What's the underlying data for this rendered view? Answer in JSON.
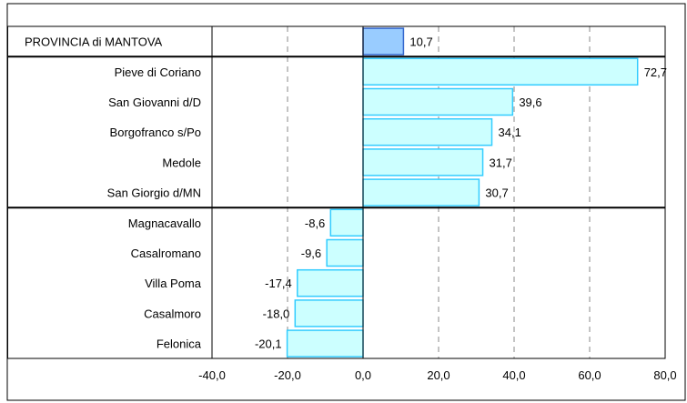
{
  "chart_data": {
    "type": "bar",
    "orientation": "horizontal",
    "title": "",
    "xlabel": "",
    "ylabel": "",
    "xlim": [
      -40,
      80
    ],
    "x_ticks": [
      -40,
      -20,
      0,
      20,
      40,
      60,
      80
    ],
    "x_tick_labels": [
      "-40,0",
      "-20,0",
      "0,0",
      "20,0",
      "40,0",
      "60,0",
      "80,0"
    ],
    "grid": "vertical dashed",
    "legend": "none",
    "groups": [
      {
        "categories": [
          "PROVINCIA di MANTOVA"
        ],
        "values": [
          10.7
        ],
        "value_labels": [
          "10,7"
        ],
        "color": "#99ccff"
      },
      {
        "categories": [
          "Pieve di Coriano",
          "San Giovanni d/D",
          "Borgofranco s/Po",
          "Medole",
          "San Giorgio d/MN"
        ],
        "values": [
          72.7,
          39.6,
          34.1,
          31.7,
          30.7
        ],
        "value_labels": [
          "72,7",
          "39,6",
          "34,1",
          "31,7",
          "30,7"
        ],
        "color": "#ccffff"
      },
      {
        "categories": [
          "Magnacavallo",
          "Casalromano",
          "Villa Poma",
          "Casalmoro",
          "Felonica"
        ],
        "values": [
          -8.6,
          -9.6,
          -17.4,
          -18.0,
          -20.1
        ],
        "value_labels": [
          "-8,6",
          "-9,6",
          "-17,4",
          "-18,0",
          "-20,1"
        ],
        "color": "#ccffff"
      }
    ],
    "colors": {
      "province_fill": "#99ccff",
      "province_stroke": "#3366cc",
      "bar_fill": "#ccffff",
      "bar_stroke": "#33ccff",
      "frame": "#000000",
      "grid": "#888888"
    }
  }
}
